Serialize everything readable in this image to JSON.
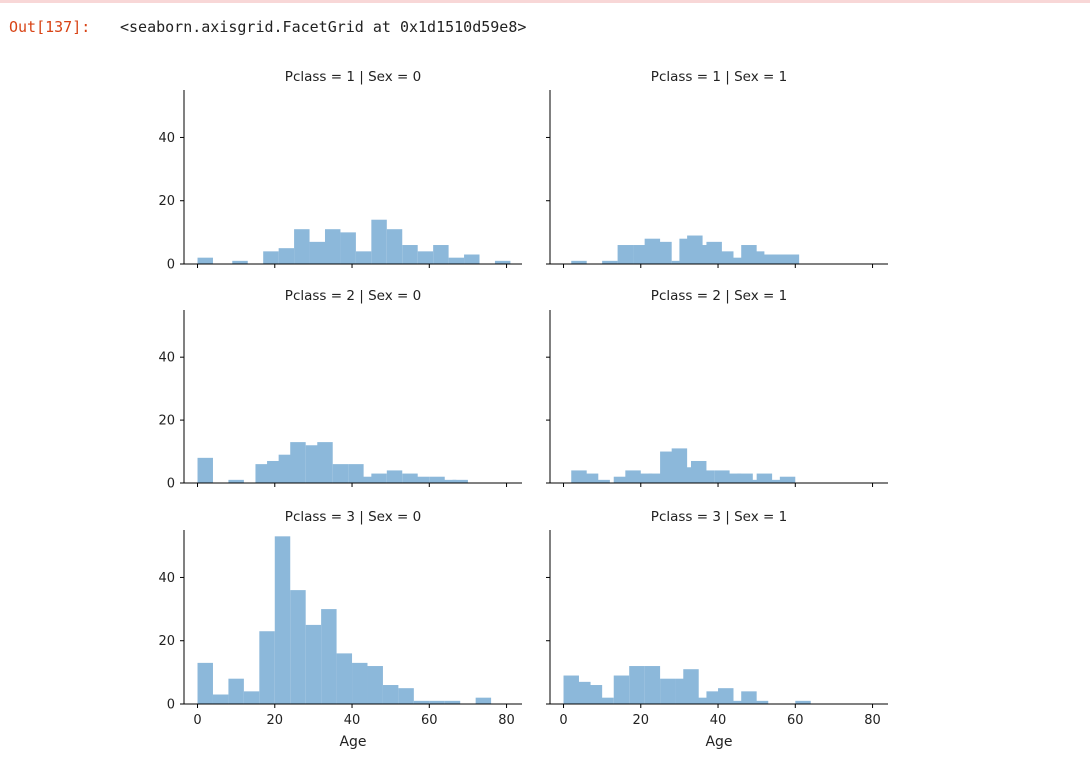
{
  "output": {
    "prompt": "Out[137]:",
    "repr": "<seaborn.axisgrid.FacetGrid at 0x1d1510d59e8>"
  },
  "chart_data": {
    "type": "bar",
    "bin_width": 4,
    "xlabel": "Age",
    "ylabel": "",
    "xlim": [
      -3.5,
      84
    ],
    "ylim": [
      0,
      55
    ],
    "xticks": [
      0,
      20,
      40,
      60,
      80
    ],
    "yticks": [
      0,
      20,
      40
    ],
    "color": "#8cb8da",
    "panels": [
      {
        "title": "Pclass = 1 | Sex = 0",
        "bins": [
          [
            0,
            2
          ],
          [
            5.5,
            0
          ],
          [
            9,
            1
          ],
          [
            17,
            4
          ],
          [
            21,
            5
          ],
          [
            25,
            11
          ],
          [
            29,
            7
          ],
          [
            33,
            11
          ],
          [
            37,
            10
          ],
          [
            41,
            4
          ],
          [
            45,
            14
          ],
          [
            49,
            11
          ],
          [
            53,
            6
          ],
          [
            57,
            4
          ],
          [
            61,
            6
          ],
          [
            65,
            2
          ],
          [
            69,
            3
          ],
          [
            77,
            1
          ]
        ]
      },
      {
        "title": "Pclass = 1 | Sex = 1",
        "bins": [
          [
            2,
            1
          ],
          [
            10,
            1
          ],
          [
            14,
            6
          ],
          [
            18,
            6
          ],
          [
            21,
            8
          ],
          [
            24,
            7
          ],
          [
            28,
            1
          ],
          [
            30,
            8
          ],
          [
            32,
            9
          ],
          [
            35,
            6
          ],
          [
            37,
            7
          ],
          [
            40,
            4
          ],
          [
            43,
            2
          ],
          [
            46,
            6
          ],
          [
            48,
            4
          ],
          [
            51,
            3
          ],
          [
            54,
            3
          ],
          [
            57,
            3
          ]
        ]
      },
      {
        "title": "Pclass = 2 | Sex = 0",
        "bins": [
          [
            0,
            8
          ],
          [
            8,
            1
          ],
          [
            15,
            6
          ],
          [
            18,
            7
          ],
          [
            21,
            9
          ],
          [
            24,
            13
          ],
          [
            28,
            12
          ],
          [
            31,
            13
          ],
          [
            35,
            6
          ],
          [
            39,
            6
          ],
          [
            42,
            2
          ],
          [
            45,
            3
          ],
          [
            49,
            4
          ],
          [
            53,
            3
          ],
          [
            56,
            2
          ],
          [
            60,
            2
          ],
          [
            63,
            1
          ],
          [
            66,
            1
          ]
        ]
      },
      {
        "title": "Pclass = 2 | Sex = 1",
        "bins": [
          [
            2,
            4
          ],
          [
            5,
            3
          ],
          [
            8,
            1
          ],
          [
            13,
            2
          ],
          [
            16,
            4
          ],
          [
            19,
            3
          ],
          [
            22,
            3
          ],
          [
            25,
            10
          ],
          [
            28,
            11
          ],
          [
            30,
            5
          ],
          [
            33,
            7
          ],
          [
            35,
            4
          ],
          [
            39,
            4
          ],
          [
            42,
            3
          ],
          [
            45,
            3
          ],
          [
            48,
            1
          ],
          [
            50,
            3
          ],
          [
            53,
            1
          ],
          [
            56,
            2
          ]
        ]
      },
      {
        "title": "Pclass = 3 | Sex = 0",
        "bins": [
          [
            0,
            13
          ],
          [
            4,
            3
          ],
          [
            8,
            8
          ],
          [
            12,
            4
          ],
          [
            16,
            23
          ],
          [
            20,
            53
          ],
          [
            24,
            36
          ],
          [
            28,
            25
          ],
          [
            32,
            30
          ],
          [
            36,
            16
          ],
          [
            40,
            13
          ],
          [
            44,
            12
          ],
          [
            48,
            6
          ],
          [
            52,
            5
          ],
          [
            56,
            1
          ],
          [
            60,
            1
          ],
          [
            64,
            1
          ],
          [
            68,
            0
          ],
          [
            72,
            2
          ]
        ]
      },
      {
        "title": "Pclass = 3 | Sex = 1",
        "bins": [
          [
            0,
            9
          ],
          [
            3,
            7
          ],
          [
            6,
            6
          ],
          [
            9,
            2
          ],
          [
            13,
            9
          ],
          [
            17,
            12
          ],
          [
            21,
            12
          ],
          [
            25,
            8
          ],
          [
            29,
            8
          ],
          [
            31,
            11
          ],
          [
            34,
            2
          ],
          [
            37,
            4
          ],
          [
            40,
            5
          ],
          [
            44,
            1
          ],
          [
            46,
            4
          ],
          [
            49,
            1
          ],
          [
            60,
            1
          ]
        ]
      }
    ]
  }
}
